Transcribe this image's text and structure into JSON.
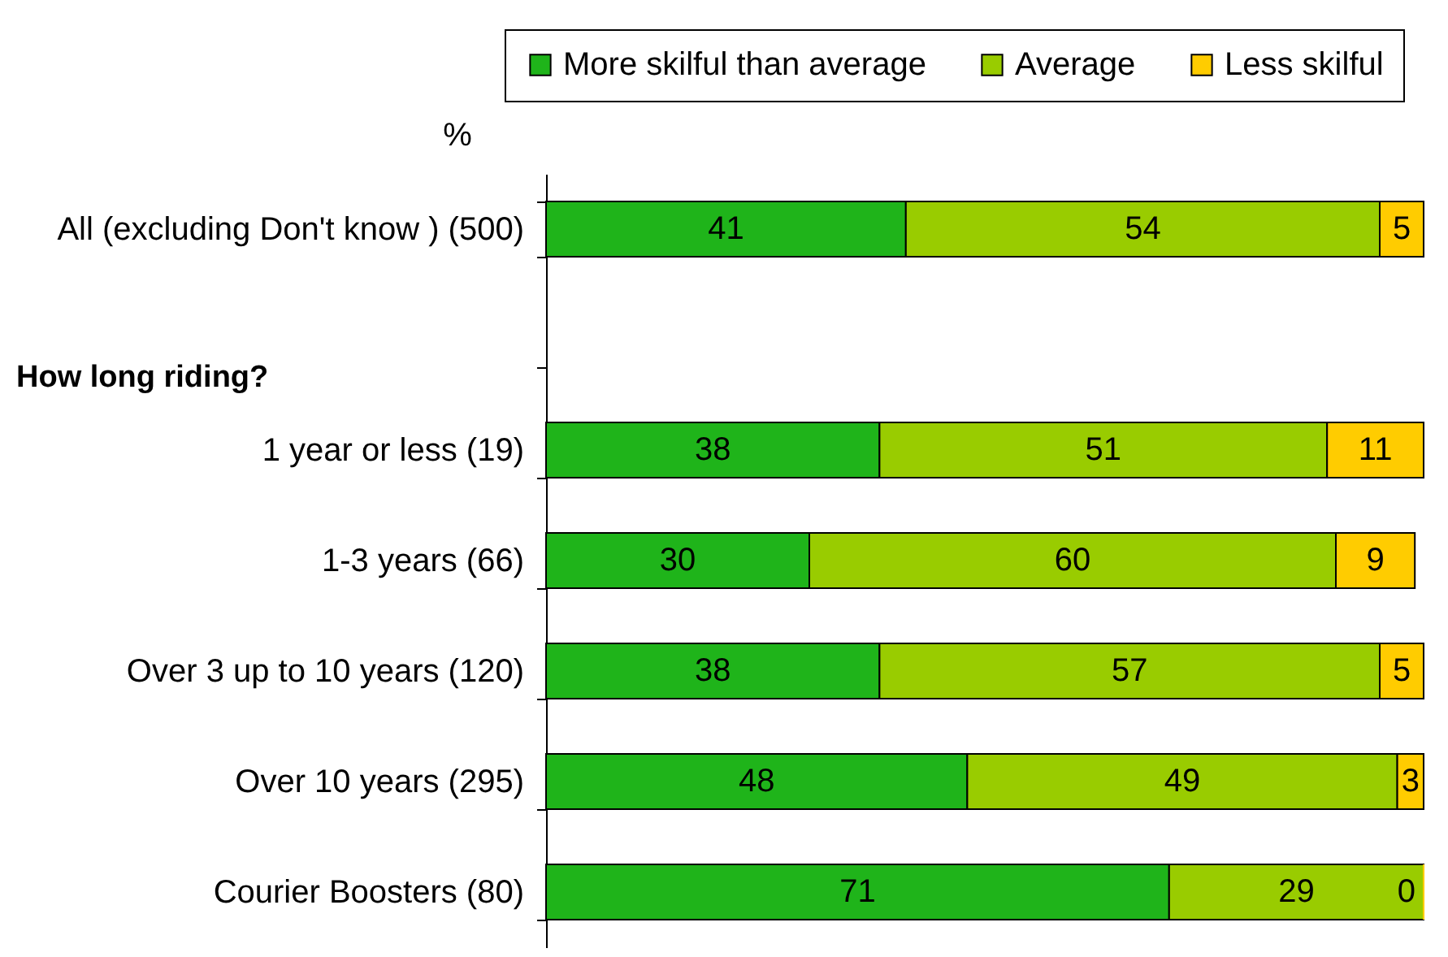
{
  "chart_data": {
    "type": "bar",
    "orientation": "horizontal",
    "stacked": true,
    "xlabel": "%",
    "categories": [
      "All (excluding Don't know ) (500)",
      null,
      "1 year or less (19)",
      "1-3 years (66)",
      "Over 3 up to 10 years (120)",
      "Over 10 years (295)",
      "Courier Boosters (80)"
    ],
    "series": [
      {
        "name": "More skilful than average",
        "color": "#1fb41a",
        "values": [
          41,
          null,
          38,
          30,
          38,
          48,
          71
        ]
      },
      {
        "name": "Average",
        "color": "#99cc00",
        "values": [
          54,
          null,
          51,
          60,
          57,
          49,
          29
        ]
      },
      {
        "name": "Less skilful",
        "color": "#ffcc00",
        "values": [
          5,
          null,
          11,
          9,
          5,
          3,
          0
        ]
      }
    ],
    "annotations": [
      "How long riding?"
    ],
    "xlim": [
      0,
      100
    ],
    "data_labels": true,
    "legend": "top",
    "tick_labels": "y"
  }
}
